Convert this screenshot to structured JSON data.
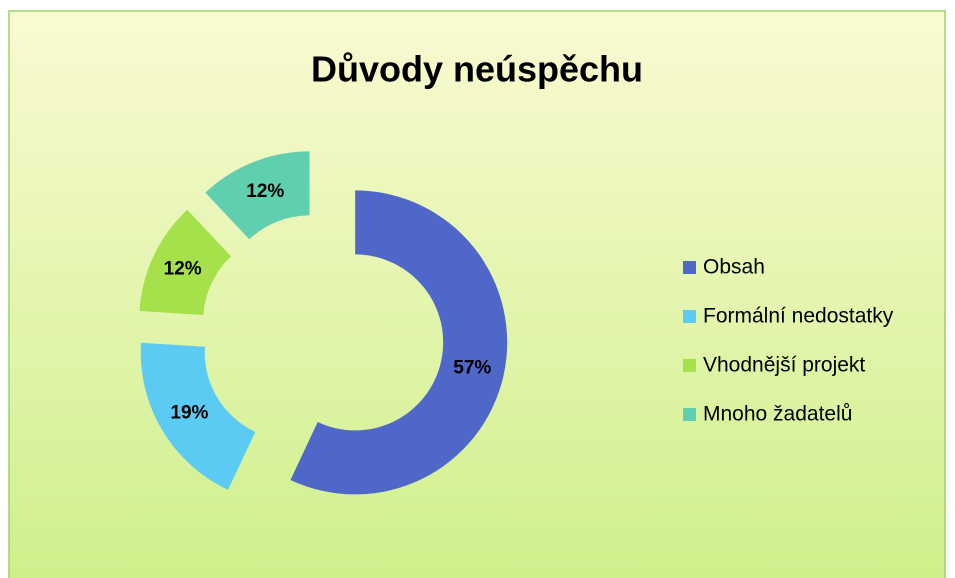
{
  "chart_data": {
    "type": "donut",
    "title": "Důvody neúspěchu",
    "categories": [
      "Obsah",
      "Formální nedostatky",
      "Vhodnější projekt",
      "Mnoho žadatelů"
    ],
    "values": [
      57,
      19,
      12,
      12
    ],
    "value_labels": [
      "57%",
      "19%",
      "12%",
      "12%"
    ],
    "colors": [
      "#4f67c8",
      "#5ccbf4",
      "#a6e04b",
      "#5fcfb0"
    ],
    "legend": "right"
  }
}
